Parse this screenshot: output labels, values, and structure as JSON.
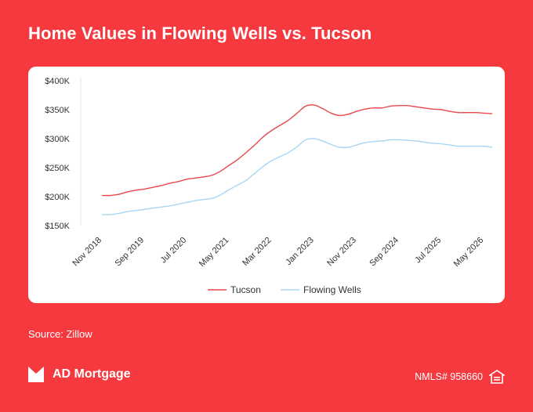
{
  "header": {
    "title": "Home Values in Flowing Wells vs. Tucson"
  },
  "footer": {
    "source": "Source: Zillow",
    "brand": "AD Mortgage",
    "nmls": "NMLS# 958660"
  },
  "icons": {
    "logo": "ad-mortgage-logo-icon",
    "housing": "equal-housing-icon"
  },
  "colors": {
    "background": "#f5393f",
    "tucson": "#e8474b",
    "flowing_wells": "#a9d6f0"
  },
  "chart_data": {
    "type": "line",
    "title": "Home Values in Flowing Wells vs. Tucson",
    "ylim": [
      150000,
      400000
    ],
    "y_ticks": [
      {
        "value": 150000,
        "label": "$150K"
      },
      {
        "value": 200000,
        "label": "$200K"
      },
      {
        "value": 250000,
        "label": "$250K"
      },
      {
        "value": 300000,
        "label": "$300K"
      },
      {
        "value": 350000,
        "label": "$350K"
      },
      {
        "value": 400000,
        "label": "$400K"
      }
    ],
    "x_ticks": [
      "Nov 2018",
      "Sep 2019",
      "Jul 2020",
      "May 2021",
      "Mar 2022",
      "Jan 2023",
      "Nov 2023",
      "Sep 2024",
      "Jul 2025",
      "May 2026"
    ],
    "x": [
      "Nov 2018",
      "Jan 2019",
      "Mar 2019",
      "May 2019",
      "Jul 2019",
      "Sep 2019",
      "Nov 2019",
      "Jan 2020",
      "Mar 2020",
      "May 2020",
      "Jul 2020",
      "Sep 2020",
      "Nov 2020",
      "Jan 2021",
      "Mar 2021",
      "May 2021",
      "Jul 2021",
      "Sep 2021",
      "Nov 2021",
      "Jan 2022",
      "Mar 2022",
      "May 2022",
      "Jul 2022",
      "Sep 2022",
      "Nov 2022",
      "Jan 2023",
      "Mar 2023",
      "May 2023",
      "Jul 2023",
      "Sep 2023",
      "Nov 2023",
      "Jan 2024",
      "Mar 2024",
      "May 2024",
      "Jul 2024",
      "Sep 2024",
      "Nov 2024",
      "Jan 2025",
      "Mar 2025",
      "May 2025",
      "Jul 2025",
      "Sep 2025",
      "Nov 2025",
      "Jan 2026",
      "Mar 2026",
      "May 2026",
      "Jul 2026"
    ],
    "series": [
      {
        "name": "Tucson",
        "color": "#e8474b",
        "values": [
          202000,
          202000,
          204000,
          208000,
          211000,
          213000,
          216000,
          219000,
          223000,
          226000,
          230000,
          232000,
          234000,
          237000,
          244000,
          254000,
          264000,
          276000,
          289000,
          303000,
          314000,
          323000,
          332000,
          344000,
          356000,
          358000,
          352000,
          344000,
          340000,
          342000,
          347000,
          351000,
          353000,
          353000,
          356000,
          357000,
          357000,
          355000,
          353000,
          351000,
          350000,
          347000,
          345000,
          345000,
          345000,
          344000,
          343000
        ]
      },
      {
        "name": "Flowing Wells",
        "color": "#a9d6f0",
        "values": [
          169000,
          169000,
          171000,
          174000,
          176000,
          178000,
          180000,
          182000,
          184000,
          187000,
          190000,
          193000,
          195000,
          197000,
          203000,
          212000,
          220000,
          228000,
          240000,
          252000,
          262000,
          269000,
          276000,
          286000,
          298000,
          300000,
          296000,
          290000,
          285000,
          285000,
          289000,
          293000,
          295000,
          296000,
          298000,
          298000,
          297000,
          296000,
          294000,
          292000,
          291000,
          289000,
          287000,
          287000,
          287000,
          287000,
          285000
        ]
      }
    ],
    "legend_position": "bottom-center",
    "grid": false
  }
}
